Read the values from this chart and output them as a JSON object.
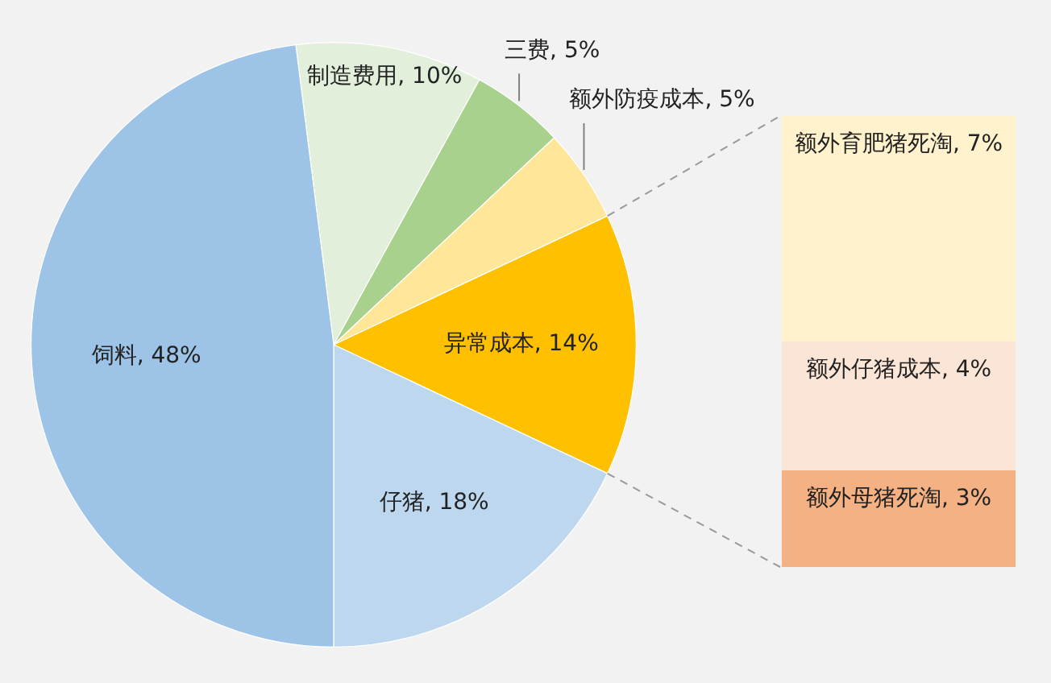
{
  "chart_data": [
    {
      "type": "pie",
      "categories": [
        "制造费用",
        "三费",
        "额外防疫成本",
        "异常成本",
        "仔猪",
        "饲料"
      ],
      "values": [
        10,
        5,
        5,
        14,
        18,
        48
      ],
      "colors": [
        "#e2efda",
        "#a9d18e",
        "#ffe699",
        "#ffc000",
        "#bdd7ee",
        "#9dc3e6"
      ],
      "value_labels": [
        "10%",
        "5%",
        "5%",
        "14%",
        "18%",
        "48%"
      ],
      "legend": false
    },
    {
      "type": "bar",
      "stacked": true,
      "categories": [
        null
      ],
      "series": [
        {
          "color": "#f4b183",
          "values": [
            3
          ],
          "value_labels": [
            "额外母猪死淘, 3%"
          ]
        },
        {
          "color": "#fbe5d6",
          "values": [
            4
          ],
          "value_labels": [
            "额外仔猪成本, 4%"
          ]
        },
        {
          "color": "#fff2cc",
          "values": [
            7
          ],
          "value_labels": [
            "额外育肥猪死淘, 7%"
          ]
        }
      ],
      "legend": false
    }
  ]
}
